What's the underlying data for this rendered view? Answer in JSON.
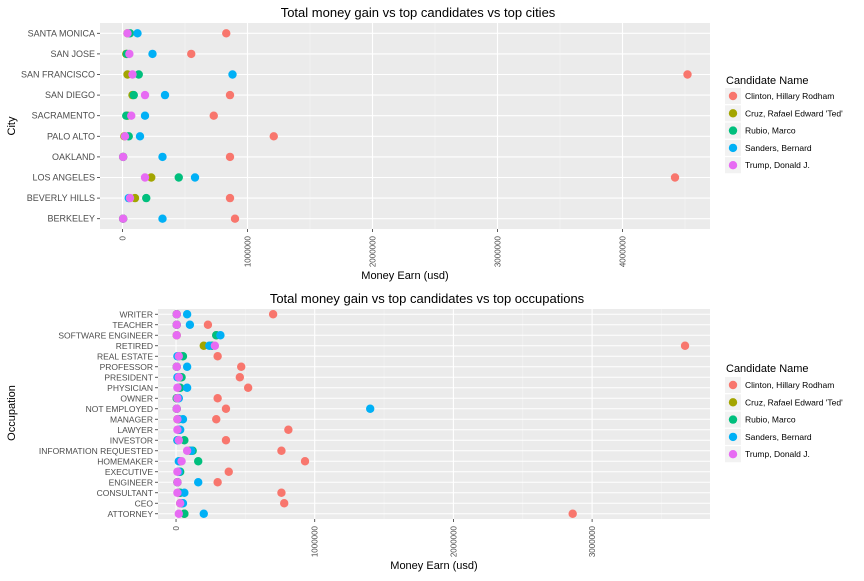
{
  "legend": {
    "title": "Candidate Name",
    "entries": [
      {
        "name": "Clinton, Hillary Rodham",
        "color": "#F8766D"
      },
      {
        "name": "Cruz, Rafael Edward 'Ted'",
        "color": "#A3A500"
      },
      {
        "name": "Rubio, Marco",
        "color": "#00BF7D"
      },
      {
        "name": "Sanders, Bernard",
        "color": "#00B0F6"
      },
      {
        "name": "Trump, Donald J.",
        "color": "#E76BF3"
      }
    ]
  },
  "chart_data": [
    {
      "type": "scatter",
      "title": "Total money gain vs top candidates vs top cities",
      "xlabel": "Money Earn (usd)",
      "ylabel": "City",
      "xlim": [
        -180000,
        4700000
      ],
      "xticks": [
        0,
        1000000,
        2000000,
        3000000,
        4000000
      ],
      "xtick_labels": [
        "0",
        "1000000",
        "2000000",
        "3000000",
        "4000000"
      ],
      "grid": true,
      "legend_position": "right",
      "categories": [
        "BERKELEY",
        "BEVERLY HILLS",
        "LOS ANGELES",
        "OAKLAND",
        "PALO ALTO",
        "SACRAMENTO",
        "SAN DIEGO",
        "SAN FRANCISCO",
        "SAN JOSE",
        "SANTA MONICA"
      ],
      "series": [
        {
          "name": "Clinton, Hillary Rodham",
          "values": [
            900000,
            860000,
            4420000,
            860000,
            1210000,
            730000,
            860000,
            4520000,
            550000,
            830000
          ]
        },
        {
          "name": "Cruz, Rafael Edward 'Ted'",
          "values": [
            5000,
            100000,
            230000,
            5000,
            15000,
            40000,
            80000,
            40000,
            30000,
            40000
          ]
        },
        {
          "name": "Rubio, Marco",
          "values": [
            5000,
            190000,
            450000,
            5000,
            50000,
            30000,
            90000,
            130000,
            35000,
            60000
          ]
        },
        {
          "name": "Sanders, Bernard",
          "values": [
            320000,
            50000,
            580000,
            320000,
            140000,
            180000,
            340000,
            880000,
            240000,
            120000
          ]
        },
        {
          "name": "Trump, Donald J.",
          "values": [
            5000,
            60000,
            180000,
            5000,
            20000,
            70000,
            180000,
            80000,
            55000,
            40000
          ]
        }
      ]
    },
    {
      "type": "scatter",
      "title": "Total money gain vs top candidates vs top occupations",
      "xlabel": "Money Earn (usd)",
      "ylabel": "Occupation",
      "xlim": [
        -130000,
        3850000
      ],
      "xticks": [
        0,
        1000000,
        2000000,
        3000000
      ],
      "xtick_labels": [
        "0",
        "1000000",
        "2000000",
        "3000000"
      ],
      "grid": true,
      "legend_position": "right",
      "categories": [
        "ATTORNEY",
        "CEO",
        "CONSULTANT",
        "ENGINEER",
        "EXECUTIVE",
        "HOMEMAKER",
        "INFORMATION REQUESTED",
        "INVESTOR",
        "LAWYER",
        "MANAGER",
        "NOT EMPLOYED",
        "OWNER",
        "PHYSICIAN",
        "PRESIDENT",
        "PROFESSOR",
        "REAL ESTATE",
        "RETIRED",
        "SOFTWARE ENGINEER",
        "TEACHER",
        "WRITER"
      ],
      "series": [
        {
          "name": "Clinton, Hillary Rodham",
          "values": [
            2860000,
            780000,
            760000,
            300000,
            380000,
            930000,
            760000,
            360000,
            810000,
            290000,
            360000,
            300000,
            520000,
            460000,
            470000,
            300000,
            3670000,
            290000,
            230000,
            700000
          ]
        },
        {
          "name": "Cruz, Rafael Edward 'Ted'",
          "values": [
            60000,
            30000,
            20000,
            10000,
            20000,
            30000,
            100000,
            10000,
            20000,
            10000,
            5000,
            5000,
            20000,
            30000,
            5000,
            20000,
            200000,
            5000,
            5000,
            5000
          ]
        },
        {
          "name": "Rubio, Marco",
          "values": [
            60000,
            40000,
            30000,
            10000,
            30000,
            160000,
            120000,
            60000,
            20000,
            20000,
            5000,
            5000,
            30000,
            40000,
            5000,
            50000,
            260000,
            290000,
            5000,
            5000
          ]
        },
        {
          "name": "Sanders, Bernard",
          "values": [
            200000,
            50000,
            60000,
            160000,
            20000,
            20000,
            110000,
            10000,
            30000,
            50000,
            1400000,
            20000,
            80000,
            10000,
            80000,
            10000,
            240000,
            320000,
            100000,
            80000
          ]
        },
        {
          "name": "Trump, Donald J.",
          "values": [
            20000,
            30000,
            10000,
            10000,
            10000,
            40000,
            80000,
            20000,
            10000,
            10000,
            5000,
            10000,
            10000,
            20000,
            5000,
            20000,
            280000,
            5000,
            5000,
            5000
          ]
        }
      ]
    }
  ]
}
